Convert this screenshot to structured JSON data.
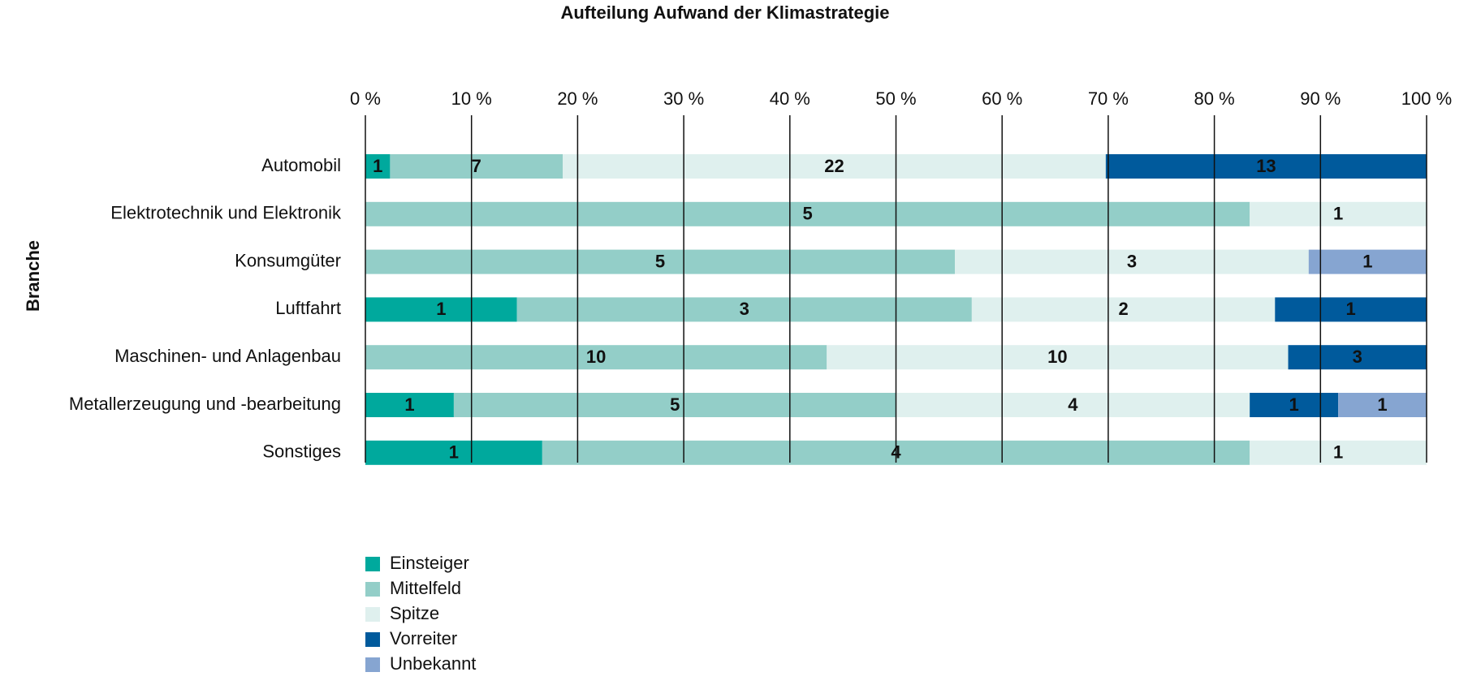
{
  "chart_data": {
    "type": "bar",
    "orientation": "horizontal",
    "stack": "percent",
    "title": "Aufteilung Aufwand der Klimastrategie",
    "y_label": "Branche",
    "categories": [
      "Automobil",
      "Elektrotechnik und Elektronik",
      "Konsumgüter",
      "Luftfahrt",
      "Maschinen- und Anlagenbau",
      "Metallerzeugung und -bearbeitung",
      "Sonstiges"
    ],
    "series": [
      {
        "name": "Einsteiger",
        "color": "#00a99d",
        "values": [
          1,
          null,
          null,
          1,
          null,
          1,
          1
        ]
      },
      {
        "name": "Mittelfeld",
        "color": "#93cec8",
        "values": [
          7,
          5,
          5,
          3,
          10,
          5,
          4
        ]
      },
      {
        "name": "Spitze",
        "color": "#dff0ee",
        "values": [
          22,
          1,
          3,
          2,
          10,
          4,
          1
        ]
      },
      {
        "name": "Vorreiter",
        "color": "#005a9c",
        "values": [
          13,
          null,
          null,
          1,
          3,
          1,
          null
        ]
      },
      {
        "name": "Unbekannt",
        "color": "#86a5d1",
        "values": [
          null,
          null,
          1,
          null,
          null,
          1,
          null
        ]
      }
    ],
    "xlim": [
      0,
      100
    ],
    "xticks": [
      {
        "value": 0,
        "label": "0 %"
      },
      {
        "value": 10,
        "label": "10 %"
      },
      {
        "value": 20,
        "label": "20 %"
      },
      {
        "value": 30,
        "label": "30 %"
      },
      {
        "value": 40,
        "label": "40 %"
      },
      {
        "value": 50,
        "label": "50 %"
      },
      {
        "value": 60,
        "label": "60 %"
      },
      {
        "value": 70,
        "label": "70 %"
      },
      {
        "value": 80,
        "label": "80 %"
      },
      {
        "value": 90,
        "label": "90 %"
      },
      {
        "value": 100,
        "label": "100 %"
      }
    ],
    "grid": true,
    "legend": "bottom-left"
  }
}
